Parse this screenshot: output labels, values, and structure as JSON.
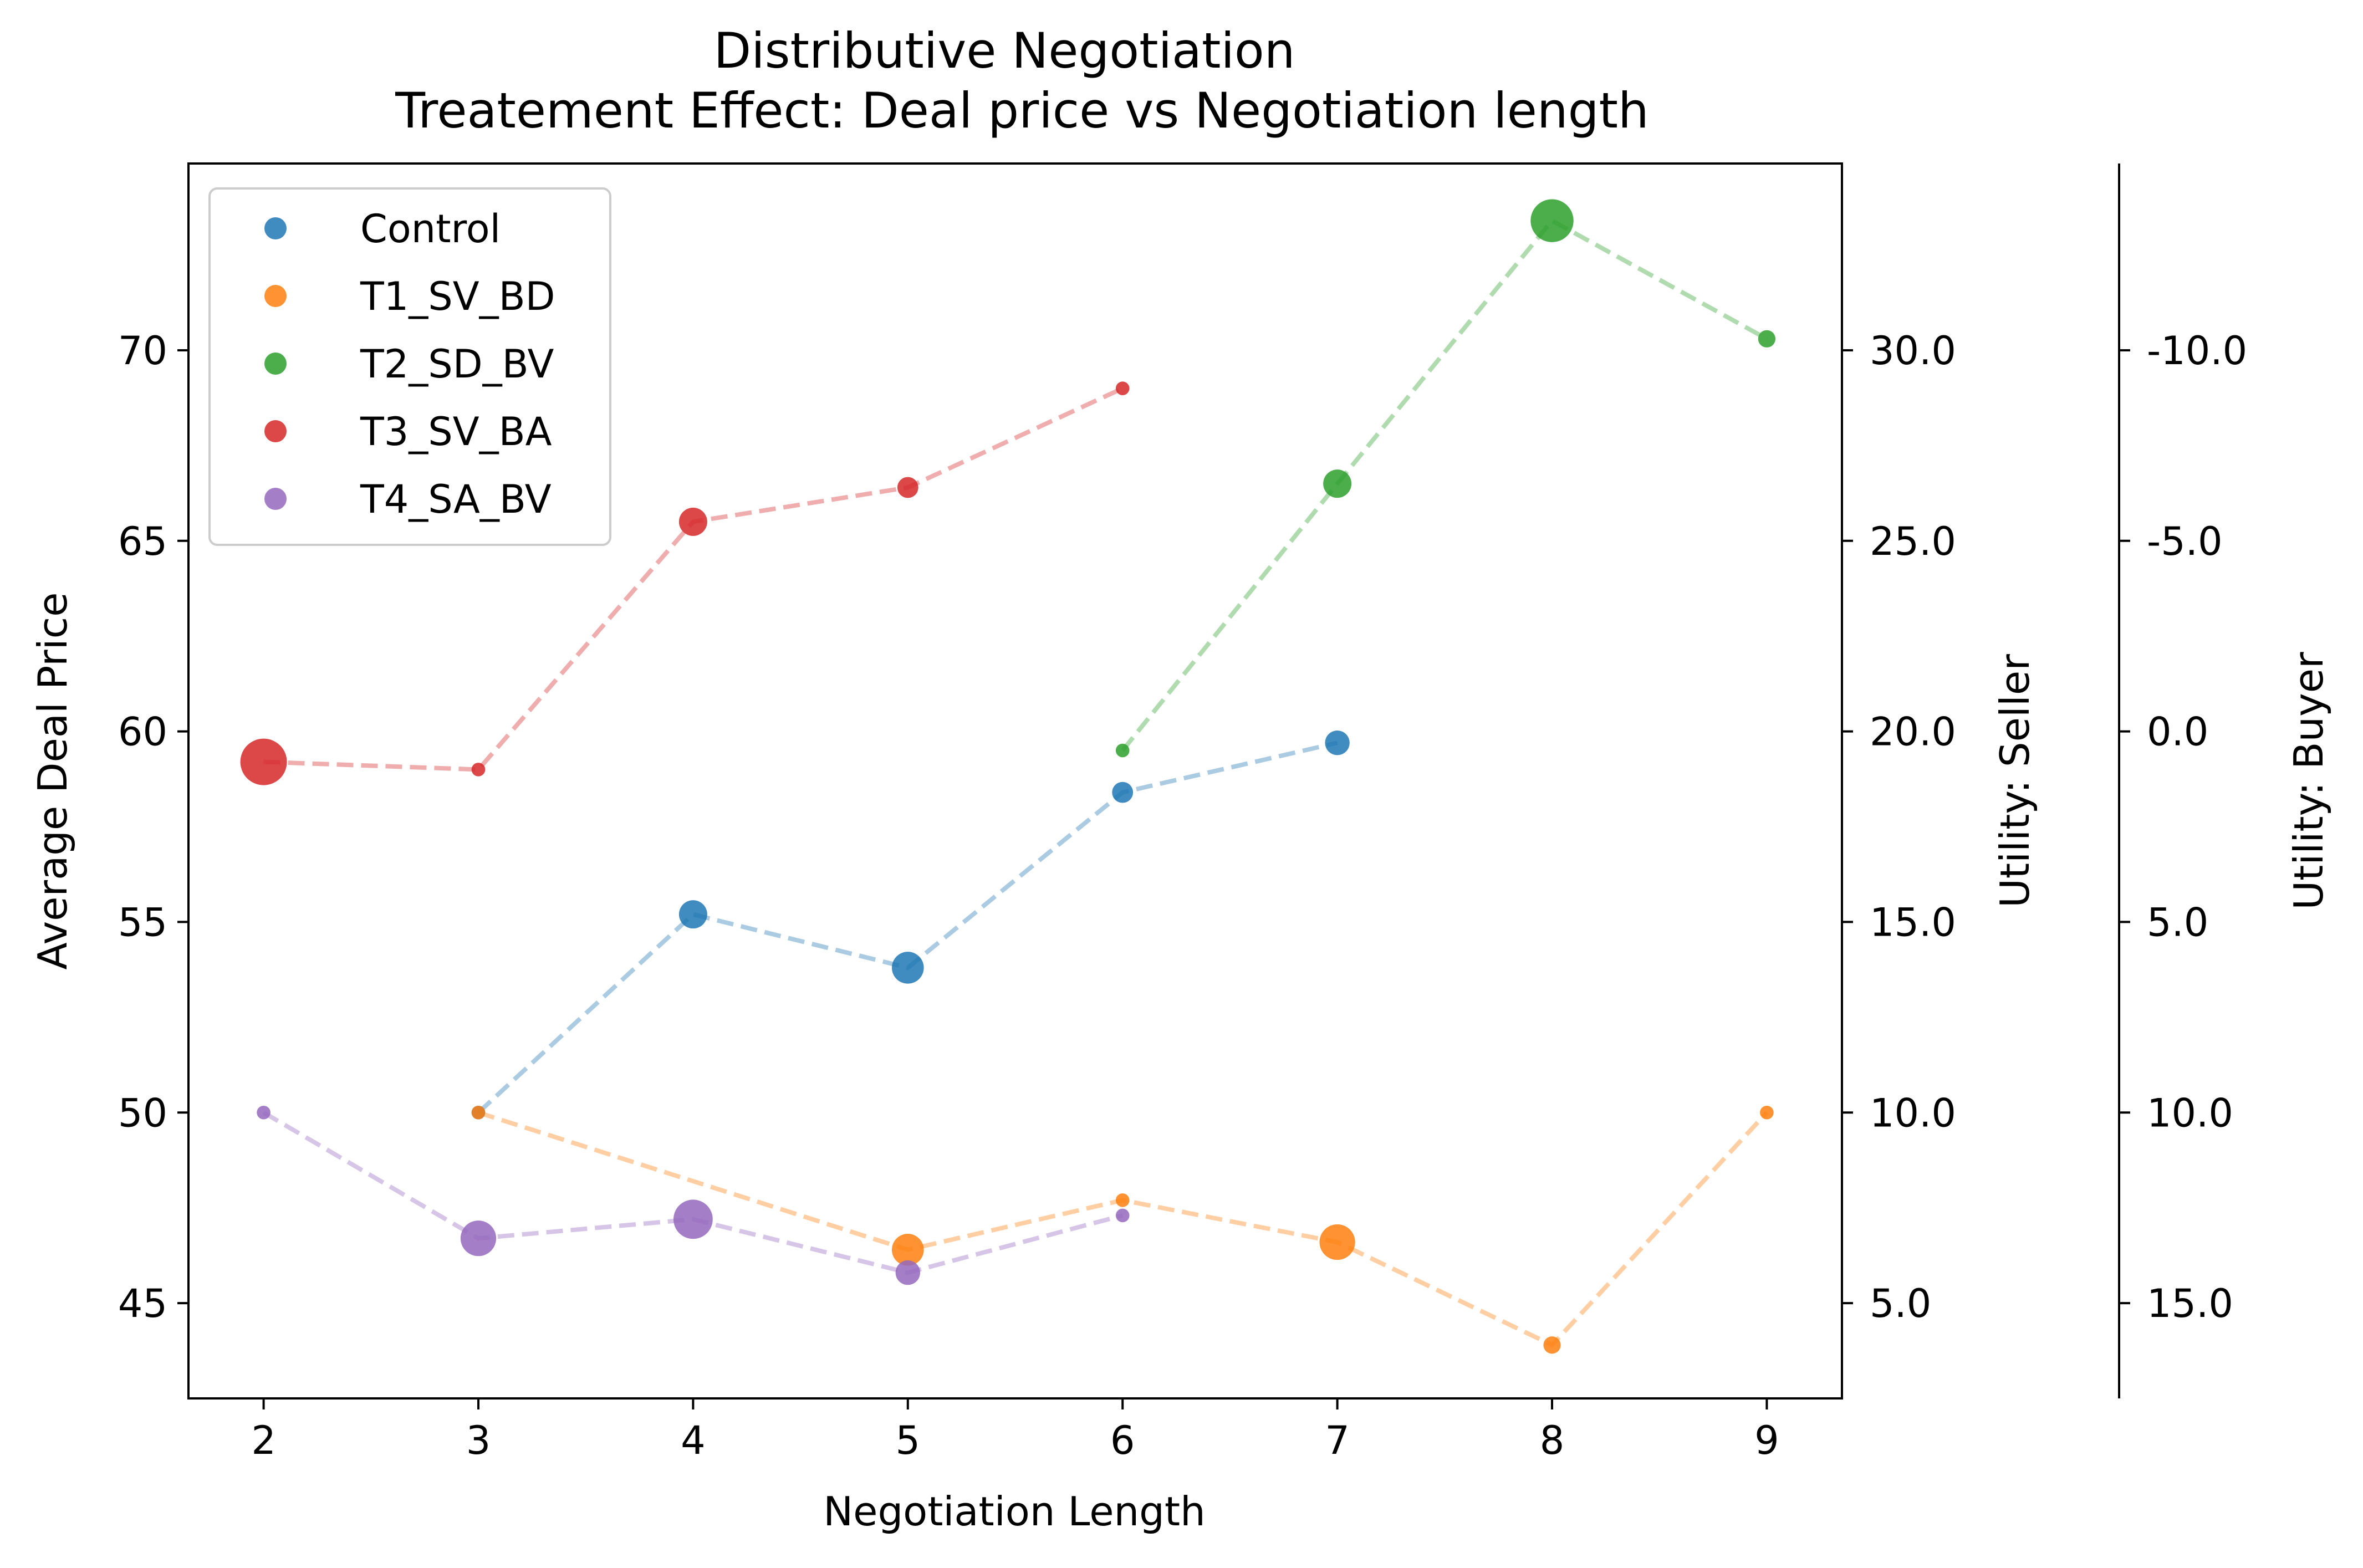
{
  "chart_data": {
    "type": "scatter",
    "title": "Distributive Negotiation",
    "subtitle": "Treatement Effect: Deal price vs Negotiation length",
    "xlabel": "Negotiation Length",
    "ylabel": "Average Deal Price",
    "y2label": "Utility: Seller",
    "y3label": "Utility: Buyer",
    "xlim": [
      1.65,
      9.35
    ],
    "ylim": [
      42.5,
      74.9
    ],
    "x_ticks": [
      "2",
      "3",
      "4",
      "5",
      "6",
      "7",
      "8",
      "9"
    ],
    "y_ticks": [
      "45",
      "50",
      "55",
      "60",
      "65",
      "70"
    ],
    "y2_ticks": [
      {
        "v": 45,
        "label": "5.0"
      },
      {
        "v": 50,
        "label": "10.0"
      },
      {
        "v": 55,
        "label": "15.0"
      },
      {
        "v": 60,
        "label": "20.0"
      },
      {
        "v": 65,
        "label": "25.0"
      },
      {
        "v": 70,
        "label": "30.0"
      }
    ],
    "y3_ticks": [
      {
        "v": 45,
        "label": "15.0"
      },
      {
        "v": 50,
        "label": "10.0"
      },
      {
        "v": 55,
        "label": "5.0"
      },
      {
        "v": 60,
        "label": "0.0"
      },
      {
        "v": 65,
        "label": "-5.0"
      },
      {
        "v": 70,
        "label": "-10.0"
      }
    ],
    "grid": false,
    "legend_position": "top-left",
    "point_size_encodes_count": true,
    "series": [
      {
        "name": "Control",
        "color": "#1f77b4",
        "x": [
          3,
          4,
          5,
          6,
          7
        ],
        "y": [
          50.0,
          55.2,
          53.8,
          58.4,
          59.7
        ],
        "size": [
          1,
          5,
          6,
          3,
          4
        ]
      },
      {
        "name": "T1_SV_BD",
        "color": "#ff7f0e",
        "x": [
          3,
          5,
          6,
          7,
          8,
          9
        ],
        "y": [
          50.0,
          46.4,
          47.7,
          46.6,
          43.9,
          50.0
        ],
        "size": [
          1,
          6,
          1,
          7,
          2,
          1
        ]
      },
      {
        "name": "T2_SD_BV",
        "color": "#2ca02c",
        "x": [
          6,
          7,
          8,
          9
        ],
        "y": [
          59.5,
          66.5,
          73.4,
          70.3
        ],
        "size": [
          1,
          5,
          9,
          2
        ]
      },
      {
        "name": "T3_SV_BA",
        "color": "#d62728",
        "x": [
          2,
          3,
          4,
          5,
          6
        ],
        "y": [
          59.2,
          59.0,
          65.5,
          66.4,
          69.0
        ],
        "size": [
          10,
          1,
          5,
          3,
          1
        ]
      },
      {
        "name": "T4_SA_BV",
        "color": "#9467bd",
        "x": [
          2,
          3,
          4,
          5,
          6
        ],
        "y": [
          50.0,
          46.7,
          47.2,
          45.8,
          47.3
        ],
        "size": [
          1,
          7,
          8,
          4,
          1
        ]
      }
    ]
  }
}
